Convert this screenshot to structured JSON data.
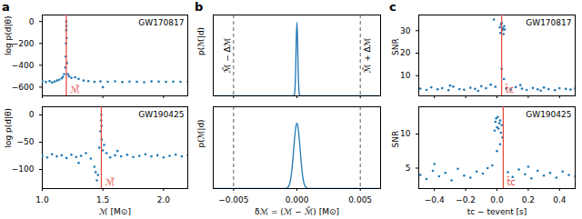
{
  "chart_data": [
    {
      "panel": "a",
      "type": "scatter",
      "title": "GW170817",
      "color": "#1f77b4",
      "x": [
        1.0,
        1.03,
        1.06,
        1.08,
        1.1,
        1.12,
        1.14,
        1.16,
        1.17,
        1.18,
        1.19,
        1.193,
        1.195,
        1.197,
        1.198,
        1.199,
        1.2,
        1.203,
        1.21,
        1.22,
        1.24,
        1.27,
        1.3,
        1.34,
        1.38,
        1.43,
        1.48,
        1.54,
        1.6,
        1.66,
        1.72,
        1.78,
        1.84,
        1.9,
        1.96,
        2.02,
        2.08,
        2.14,
        2.2,
        1.5
      ],
      "values": [
        -548,
        -553,
        -545,
        -558,
        -550,
        -540,
        -532,
        -520,
        -505,
        -480,
        -420,
        -320,
        -200,
        -80,
        0,
        -40,
        -150,
        -380,
        -480,
        -500,
        -515,
        -510,
        -525,
        -540,
        -545,
        -552,
        -548,
        -551,
        -547,
        -553,
        -549,
        -551,
        -555,
        -548,
        -550,
        -552,
        -549,
        -551,
        -550,
        -600
      ],
      "xlim": [
        1.0,
        2.2
      ],
      "ylim": [
        -680,
        60
      ],
      "xticks": [
        1,
        1.5,
        2
      ],
      "yticks": [
        -600,
        -400,
        -200,
        0
      ],
      "y_label": "log p(d|θ)",
      "tick_labels": "y",
      "vline": {
        "x": 1.198,
        "label": "ℳ̃",
        "color": "#e4463b"
      }
    },
    {
      "type": "scatter",
      "title": "GW190425",
      "color": "#1f77b4",
      "x": [
        1.0,
        1.04,
        1.08,
        1.12,
        1.16,
        1.2,
        1.24,
        1.28,
        1.32,
        1.36,
        1.4,
        1.43,
        1.45,
        1.46,
        1.47,
        1.48,
        1.485,
        1.487,
        1.489,
        1.49,
        1.5,
        1.51,
        1.53,
        1.56,
        1.6,
        1.65,
        1.7,
        1.75,
        1.8,
        1.85,
        1.9,
        1.95,
        2.0,
        2.05,
        2.1,
        2.15,
        2.2,
        1.3,
        1.62,
        1.44
      ],
      "values": [
        -75,
        -78,
        -72,
        -76,
        -74,
        -79,
        -73,
        -77,
        -75,
        -70,
        -80,
        -95,
        -120,
        -110,
        -60,
        -30,
        -10,
        0,
        -20,
        -45,
        -65,
        -55,
        -70,
        -78,
        -74,
        -76,
        -73,
        -77,
        -75,
        -72,
        -76,
        -74,
        -78,
        -75,
        -73,
        -76,
        -74,
        -88,
        -66,
        -105
      ],
      "xlim": [
        1.0,
        2.2
      ],
      "ylim": [
        -135,
        15
      ],
      "xticks": [
        {
          "value": 1,
          "label": "1.0"
        },
        {
          "value": 1.5,
          "label": "1.5"
        },
        {
          "value": 2,
          "label": "2.0"
        }
      ],
      "yticks": [
        -100,
        -50,
        0
      ],
      "x_label": "ℳ [M⊙]",
      "y_label": "log p(d|θ)",
      "vline": {
        "x": 1.487,
        "label": "ℳ̃",
        "color": "#e4463b"
      }
    },
    {
      "panel": "b",
      "type": "line",
      "color": "#1f77b4",
      "x": [
        -0.0066,
        -0.002,
        -0.0005,
        -0.0003,
        -0.0002,
        -0.00015,
        -0.0001,
        -5e-05,
        0,
        5e-05,
        0.0001,
        0.00015,
        0.0002,
        0.0003,
        0.0005,
        0.002,
        0.0066
      ],
      "values": [
        0,
        0,
        0,
        0,
        0.017,
        0.1,
        0.36,
        0.77,
        1,
        0.77,
        0.36,
        0.1,
        0.017,
        0,
        0,
        0,
        0
      ],
      "xlim": [
        -0.0066,
        0.0066
      ],
      "ylim": [
        0,
        1.1
      ],
      "xticks": [
        -0.005,
        0,
        0.005
      ],
      "y_label": "p(ℳ|d)",
      "tick_labels": false,
      "line_style": "dashed",
      "vlines": [
        {
          "x": -0.005,
          "label": "ℳ̃ − Δℳ"
        },
        {
          "x": 0.005,
          "label": "ℳ̃ + Δℳ"
        }
      ]
    },
    {
      "type": "line",
      "color": "#1f77b4",
      "x": [
        -0.0066,
        -0.002,
        -0.001,
        -0.0008,
        -0.0006,
        -0.0004,
        -0.0003,
        -0.0002,
        -0.0001,
        0,
        0.0001,
        0.0002,
        0.0003,
        0.0004,
        0.0006,
        0.0008,
        0.001,
        0.002,
        0.0066
      ],
      "values": [
        0,
        0,
        0,
        0.006,
        0.056,
        0.28,
        0.49,
        0.73,
        0.92,
        1,
        0.92,
        0.73,
        0.49,
        0.28,
        0.056,
        0.006,
        0,
        0,
        0
      ],
      "xlim": [
        -0.0066,
        0.0066
      ],
      "ylim": [
        0,
        1.25
      ],
      "xticks": [
        {
          "value": -0.005,
          "label": "−0.005"
        },
        {
          "value": 0,
          "label": "0.000"
        },
        {
          "value": 0.005,
          "label": "0.005"
        }
      ],
      "x_label": "δℳ = (ℳ − ℳ̃) [M⊙]",
      "y_label": "p(ℳ|d)",
      "tick_labels": "x",
      "line_style": "dashed",
      "vlines": [
        {
          "x": -0.005
        },
        {
          "x": 0.005
        }
      ]
    },
    {
      "panel": "c",
      "type": "scatter",
      "title": "GW170817",
      "color": "#1f77b4",
      "x": [
        -0.49,
        -0.45,
        -0.42,
        -0.38,
        -0.35,
        -0.31,
        -0.28,
        -0.24,
        -0.21,
        -0.17,
        -0.14,
        -0.1,
        -0.07,
        -0.04,
        -0.01,
        0.06,
        0.09,
        0.12,
        0.16,
        0.19,
        0.23,
        0.26,
        0.3,
        0.33,
        0.37,
        0.4,
        0.44,
        0.47,
        0.5,
        -0.3,
        -0.02,
        0.018,
        0.022,
        0.026,
        0.03,
        0.034,
        0.038,
        0.042,
        0.046,
        0.05,
        0.03,
        0.045,
        -0.12,
        0.28,
        0.15
      ],
      "values": [
        4.2,
        3.6,
        4.8,
        3.9,
        4.4,
        3.5,
        5.1,
        4.0,
        3.7,
        4.6,
        4.1,
        5.3,
        4.4,
        6.0,
        5.0,
        4.3,
        3.8,
        4.9,
        4.2,
        3.6,
        4.5,
        3.9,
        4.7,
        4.0,
        3.5,
        4.4,
        4.1,
        3.8,
        4.3,
        5.6,
        35.0,
        31.5,
        29.0,
        32.8,
        33.5,
        30.2,
        31.0,
        28.5,
        32.0,
        30.5,
        13.0,
        8.5,
        3.2,
        3.3,
        5.8
      ],
      "xlim": [
        -0.5,
        0.5
      ],
      "ylim": [
        1,
        37
      ],
      "xticks": [
        -0.4,
        -0.2,
        0,
        0.2,
        0.4
      ],
      "yticks": [
        10,
        20,
        30
      ],
      "y_label": "SNR",
      "tick_labels": "y",
      "vline": {
        "x": 0.03,
        "label": "t̃c",
        "color": "#e4463b"
      }
    },
    {
      "type": "scatter",
      "title": "GW190425",
      "color": "#1f77b4",
      "x": [
        -0.49,
        -0.45,
        -0.41,
        -0.37,
        -0.33,
        -0.29,
        -0.25,
        -0.21,
        -0.17,
        -0.13,
        -0.09,
        -0.06,
        -0.03,
        0.07,
        0.1,
        0.14,
        0.18,
        0.22,
        0.26,
        0.3,
        0.34,
        0.38,
        0.42,
        0.46,
        0.5,
        -0.4,
        0.2,
        -0.015,
        -0.01,
        -0.005,
        0,
        0.005,
        0.01,
        0.015,
        0.02,
        0.025,
        0.03,
        0.035,
        0.0,
        0.02
      ],
      "values": [
        4.0,
        3.4,
        4.6,
        3.8,
        4.3,
        3.2,
        4.9,
        3.9,
        3.6,
        4.5,
        4.2,
        5.0,
        5.4,
        4.4,
        3.7,
        4.8,
        4.1,
        3.5,
        4.6,
        3.9,
        4.3,
        3.6,
        4.5,
        4.0,
        3.8,
        5.6,
        5.2,
        10.5,
        11.8,
        12.3,
        11.0,
        12.5,
        10.8,
        11.6,
        12.0,
        10.2,
        11.3,
        9.5,
        7.5,
        8.5
      ],
      "xlim": [
        -0.5,
        0.5
      ],
      "ylim": [
        2,
        14
      ],
      "xticks": [
        {
          "value": -0.4,
          "label": "−0.4"
        },
        {
          "value": -0.2,
          "label": "−0.2"
        },
        {
          "value": 0,
          "label": "0.0"
        },
        {
          "value": 0.2,
          "label": "0.2"
        },
        {
          "value": 0.4,
          "label": "0.4"
        }
      ],
      "yticks": [
        5,
        10
      ],
      "x_label": "tc − tevent [s]",
      "y_label": "SNR",
      "vline": {
        "x": 0.04,
        "label": "t̃c",
        "color": "#e4463b"
      }
    }
  ]
}
